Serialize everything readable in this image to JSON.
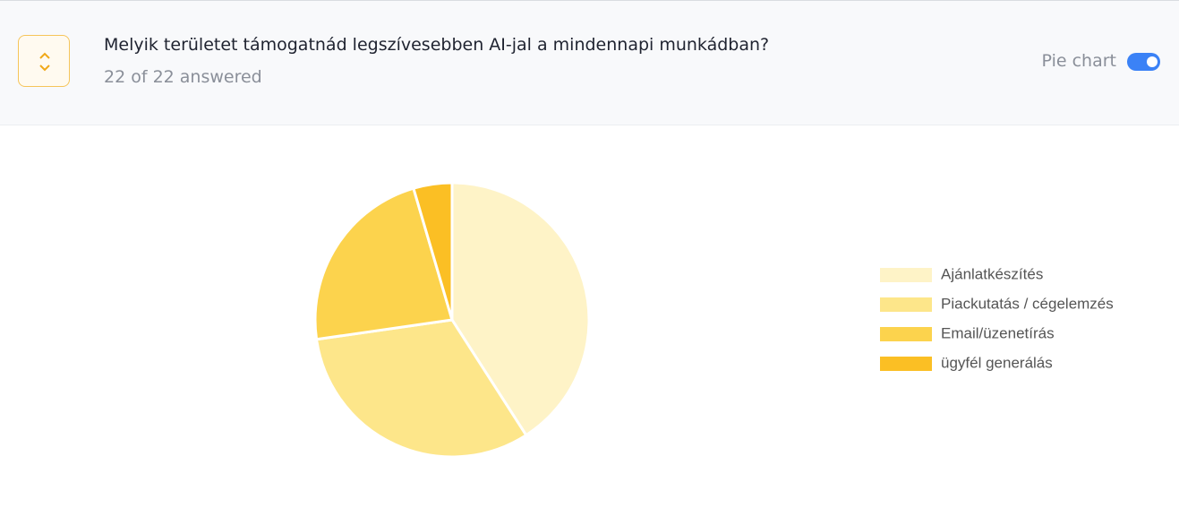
{
  "header": {
    "title": "Melyik területet támogatnád legszívesebben AI-jal a mindennapi munkádban?",
    "subtitle": "22 of 22 answered",
    "toggle_label": "Pie chart"
  },
  "chart_data": {
    "type": "pie",
    "categories": [
      "Ajánlatkészítés",
      "Piackutatás / cégelemzés",
      "Email/üzenetírás",
      "ügyfél generálás"
    ],
    "values": [
      9,
      7,
      5,
      1
    ],
    "colors": [
      "#fef3c7",
      "#fde68a",
      "#fcd34d",
      "#fbbf24"
    ],
    "legend": "right"
  }
}
